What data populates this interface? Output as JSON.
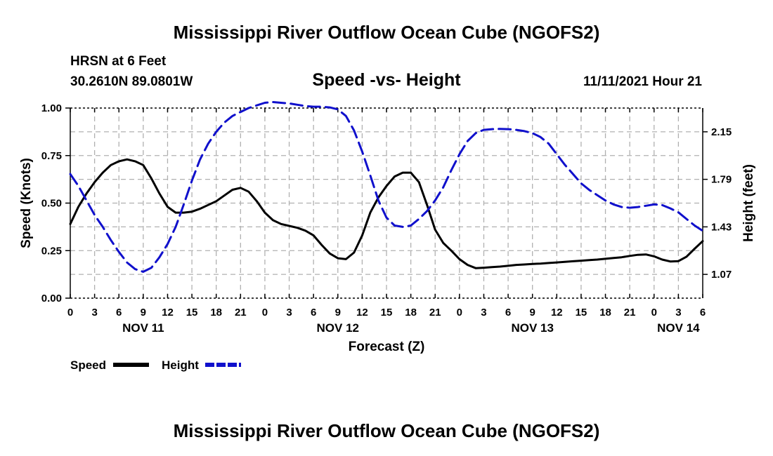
{
  "header": {
    "title": "Mississippi River Outflow Ocean Cube (NGOFS2)",
    "station": "HRSN at 6 Feet",
    "location": "30.2610N  89.0801W",
    "datetime": "11/11/2021 Hour 21"
  },
  "footer": {
    "title": "Mississippi River Outflow Ocean Cube (NGOFS2)"
  },
  "colors": {
    "speed": "#000000",
    "height": "#1010cc",
    "grid": "#b0b0b0"
  },
  "chart_data": {
    "type": "line",
    "subtitle": "Speed -vs- Height",
    "xlabel": "Forecast (Z)",
    "ylabel": "Speed (Knots)",
    "y2label": "Height (feet)",
    "x_range_hours": [
      0,
      78
    ],
    "ylim": [
      0,
      1
    ],
    "y2lim": [
      0.89,
      2.33
    ],
    "y_ticks": [
      0.0,
      0.25,
      0.5,
      0.75,
      1.0
    ],
    "y_tick_labels": [
      "0.00",
      "0.25",
      "0.50",
      "0.75",
      "1.00"
    ],
    "y2_ticks": [
      1.07,
      1.43,
      1.79,
      2.15
    ],
    "y2_tick_labels": [
      "1.07",
      "1.43",
      "1.79",
      "2.15"
    ],
    "x_tick_hours": [
      0,
      3,
      6,
      9,
      12,
      15,
      18,
      21,
      24,
      27,
      30,
      33,
      36,
      39,
      42,
      45,
      48,
      51,
      54,
      57,
      60,
      63,
      66,
      69,
      72,
      75,
      78
    ],
    "x_tick_labels": [
      "0",
      "3",
      "6",
      "9",
      "12",
      "15",
      "18",
      "21",
      "0",
      "3",
      "6",
      "9",
      "12",
      "15",
      "18",
      "21",
      "0",
      "3",
      "6",
      "9",
      "12",
      "15",
      "18",
      "21",
      "0",
      "3",
      "6"
    ],
    "day_labels": [
      {
        "hour": 9,
        "label": "NOV 11"
      },
      {
        "hour": 33,
        "label": "NOV 12"
      },
      {
        "hour": 57,
        "label": "NOV 13"
      },
      {
        "hour": 75,
        "label": "NOV 14"
      }
    ],
    "legend": [
      {
        "name": "Speed",
        "style": "solid"
      },
      {
        "name": "Height",
        "style": "dashed"
      }
    ],
    "series": [
      {
        "name": "Speed",
        "axis": "left",
        "style": "solid",
        "x": [
          0,
          1,
          2,
          3,
          4,
          5,
          6,
          7,
          8,
          9,
          10,
          11,
          12,
          13,
          14,
          15,
          16,
          17,
          18,
          19,
          20,
          21,
          22,
          23,
          24,
          25,
          26,
          27,
          28,
          29,
          30,
          31,
          32,
          33,
          34,
          35,
          36,
          37,
          38,
          39,
          40,
          41,
          42,
          43,
          44,
          45,
          46,
          47,
          48,
          49,
          50,
          51,
          52,
          53,
          54,
          55,
          56,
          57,
          58,
          59,
          60,
          61,
          62,
          63,
          64,
          65,
          66,
          67,
          68,
          69,
          70,
          71,
          72,
          73,
          74,
          75,
          76,
          77,
          78
        ],
        "values": [
          0.39,
          0.48,
          0.55,
          0.61,
          0.66,
          0.7,
          0.72,
          0.73,
          0.72,
          0.7,
          0.63,
          0.55,
          0.48,
          0.45,
          0.45,
          0.455,
          0.47,
          0.49,
          0.51,
          0.54,
          0.57,
          0.58,
          0.56,
          0.51,
          0.45,
          0.41,
          0.39,
          0.38,
          0.37,
          0.355,
          0.33,
          0.28,
          0.235,
          0.21,
          0.205,
          0.24,
          0.33,
          0.45,
          0.53,
          0.59,
          0.64,
          0.66,
          0.66,
          0.61,
          0.49,
          0.36,
          0.29,
          0.25,
          0.205,
          0.175,
          0.158,
          0.16,
          0.163,
          0.166,
          0.17,
          0.175,
          0.177,
          0.18,
          0.182,
          0.185,
          0.188,
          0.191,
          0.194,
          0.197,
          0.2,
          0.203,
          0.207,
          0.211,
          0.215,
          0.222,
          0.228,
          0.23,
          0.22,
          0.203,
          0.193,
          0.195,
          0.218,
          0.26,
          0.3
        ]
      },
      {
        "name": "Height",
        "axis": "right",
        "style": "dashed",
        "x": [
          0,
          1,
          2,
          3,
          4,
          5,
          6,
          7,
          8,
          9,
          10,
          11,
          12,
          13,
          14,
          15,
          16,
          17,
          18,
          19,
          20,
          21,
          22,
          23,
          24,
          25,
          26,
          27,
          28,
          29,
          30,
          31,
          32,
          33,
          34,
          35,
          36,
          37,
          38,
          39,
          40,
          41,
          42,
          43,
          44,
          45,
          46,
          47,
          48,
          49,
          50,
          51,
          52,
          53,
          54,
          55,
          56,
          57,
          58,
          59,
          60,
          61,
          62,
          63,
          64,
          65,
          66,
          67,
          68,
          69,
          70,
          71,
          72,
          73,
          74,
          75,
          76,
          77,
          78
        ],
        "values": [
          1.83,
          1.74,
          1.63,
          1.52,
          1.43,
          1.33,
          1.24,
          1.16,
          1.11,
          1.09,
          1.12,
          1.2,
          1.3,
          1.43,
          1.6,
          1.78,
          1.94,
          2.06,
          2.15,
          2.22,
          2.27,
          2.3,
          2.33,
          2.35,
          2.37,
          2.375,
          2.37,
          2.365,
          2.355,
          2.345,
          2.34,
          2.34,
          2.335,
          2.32,
          2.27,
          2.16,
          2.0,
          1.82,
          1.63,
          1.5,
          1.44,
          1.43,
          1.44,
          1.49,
          1.55,
          1.63,
          1.73,
          1.86,
          1.98,
          2.08,
          2.14,
          2.165,
          2.17,
          2.172,
          2.17,
          2.165,
          2.155,
          2.14,
          2.11,
          2.06,
          1.98,
          1.9,
          1.83,
          1.76,
          1.71,
          1.67,
          1.63,
          1.6,
          1.58,
          1.575,
          1.58,
          1.59,
          1.6,
          1.595,
          1.57,
          1.54,
          1.49,
          1.44,
          1.4
        ]
      }
    ]
  }
}
